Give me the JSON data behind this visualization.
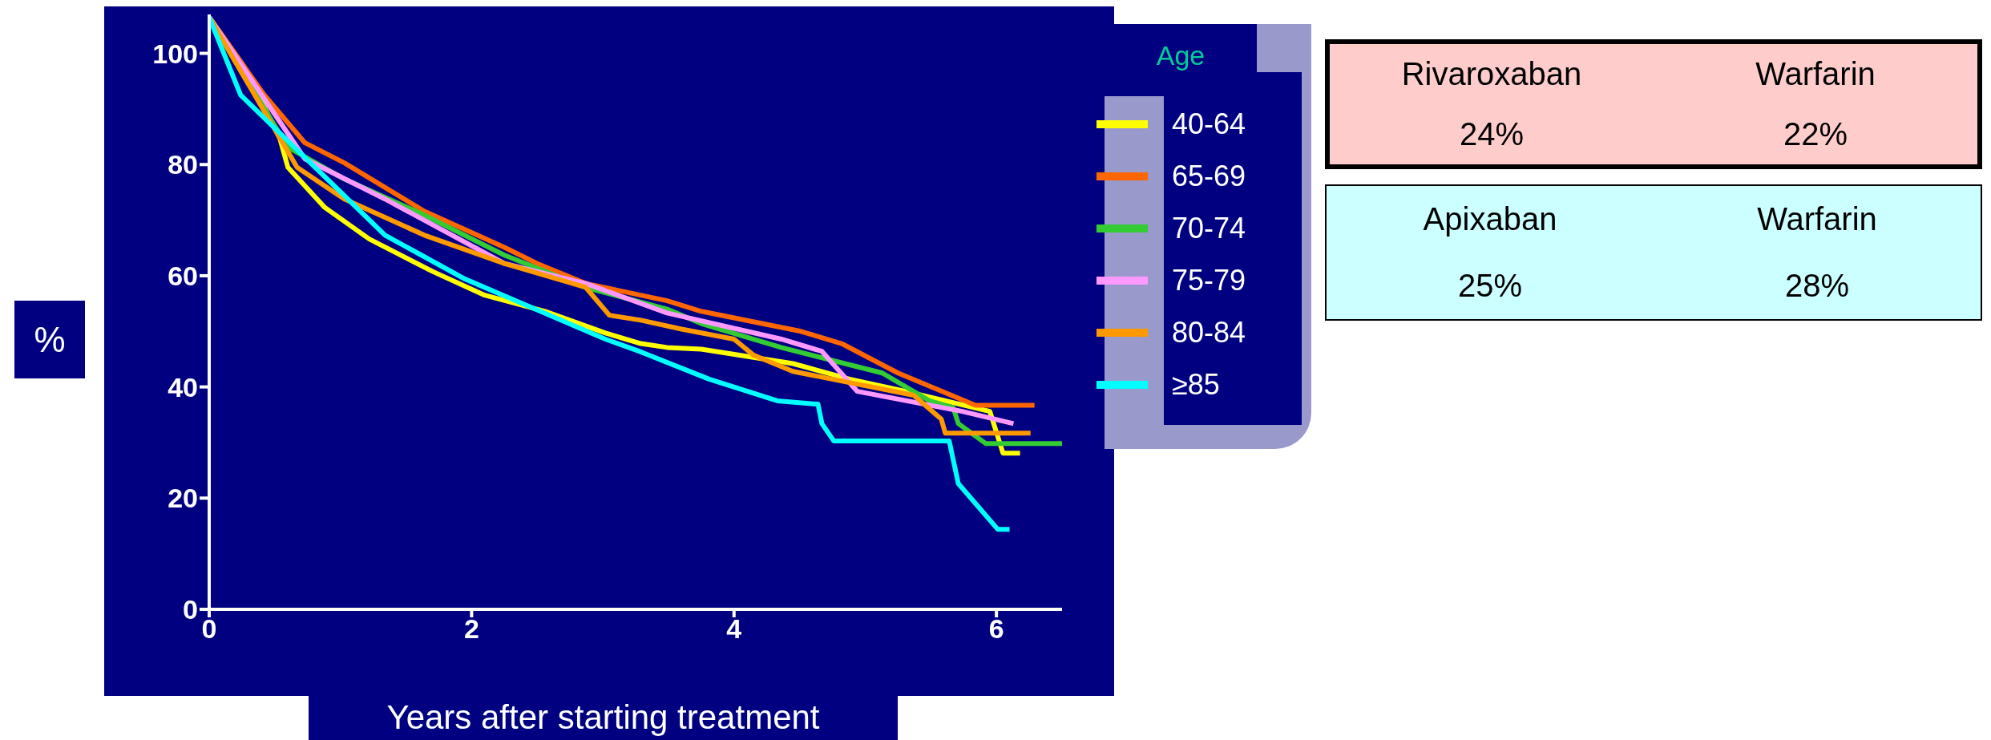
{
  "chart_data": [
    {
      "type": "line",
      "xlabel": "Years after starting treatment",
      "ylabel": "%",
      "legend_title": "Age",
      "legend": "right",
      "marker": "none",
      "line_style": "solid",
      "xlim": [
        0,
        6.5
      ],
      "xticks": [
        0,
        2,
        4,
        6
      ],
      "ylim": [
        0,
        107
      ],
      "yticks": [
        0,
        20,
        40,
        60,
        80,
        100
      ],
      "series": [
        {
          "name": "40-64",
          "color": "#ffff00",
          "x": [
            0,
            0.27,
            0.54,
            0.6,
            0.88,
            1.22,
            1.7,
            2.1,
            2.56,
            3.02,
            3.29,
            3.49,
            3.75,
            4.45,
            4.88,
            5.31,
            5.95,
            6.05,
            6.18
          ],
          "values": [
            106.5,
            97.5,
            84.6,
            79.5,
            72.3,
            66.6,
            60.8,
            56.5,
            53.6,
            49.7,
            47.8,
            47.1,
            46.8,
            44.2,
            41.4,
            39.2,
            35.6,
            28.1,
            28.1
          ]
        },
        {
          "name": "65-69",
          "color": "#ff6600",
          "x": [
            0,
            0.42,
            0.73,
            1.03,
            1.64,
            2.25,
            2.5,
            2.87,
            3.49,
            3.75,
            4.51,
            4.82,
            5.25,
            5.84,
            6.29
          ],
          "values": [
            106.5,
            92.5,
            83.9,
            80.3,
            71.6,
            65.1,
            62.2,
            58.6,
            55.5,
            53.6,
            50,
            47.8,
            42.5,
            36.7,
            36.7
          ]
        },
        {
          "name": "70-74",
          "color": "#33cc33",
          "x": [
            0,
            0.6,
            1.03,
            1.64,
            2.25,
            2.87,
            3.49,
            3.75,
            4.36,
            5.13,
            5.49,
            5.67,
            5.71,
            5.92,
            6.5
          ],
          "values": [
            106.5,
            83.1,
            77.4,
            70.9,
            63.7,
            57.9,
            54,
            51.4,
            47.1,
            42.5,
            37.5,
            36.3,
            33.4,
            29.8,
            29.8
          ]
        },
        {
          "name": "75-79",
          "color": "#ff99ff",
          "x": [
            0,
            0.73,
            1.34,
            2.25,
            2.87,
            3.49,
            4.36,
            4.67,
            4.94,
            5.74,
            6.13
          ],
          "values": [
            106.5,
            81,
            73.8,
            62.2,
            58.6,
            53.3,
            48.6,
            46.4,
            39.2,
            35.6,
            33.4
          ]
        },
        {
          "name": "80-84",
          "color": "#ff9900",
          "x": [
            0,
            0.67,
            1.03,
            1.64,
            2.25,
            2.87,
            3.05,
            3.29,
            3.6,
            4,
            4.15,
            4.45,
            5.37,
            5.58,
            5.61,
            6.26
          ],
          "values": [
            106.5,
            79.5,
            73.8,
            67.3,
            62.2,
            57.9,
            52.9,
            52,
            50.4,
            48.6,
            45.7,
            42.8,
            38.5,
            34.2,
            31.7,
            31.7
          ]
        },
        {
          "name": "≥85",
          "color": "#00ffff",
          "x": [
            0,
            0.24,
            1.34,
            1.95,
            3.02,
            3.29,
            3.81,
            4.33,
            4.64,
            4.67,
            4.76,
            5.64,
            5.71,
            6.01,
            6.1
          ],
          "values": [
            106.5,
            92.5,
            67.3,
            59.4,
            48.6,
            46.3,
            41.4,
            37.5,
            36.9,
            33.4,
            30.3,
            30.3,
            22.6,
            14.4,
            14.4
          ]
        }
      ]
    },
    {
      "type": "other",
      "annotations": [
        "Rivaroxaban",
        "Warfarin",
        "24%",
        "22%"
      ]
    },
    {
      "type": "other",
      "annotations": [
        "Apixaban",
        "Warfarin",
        "25%",
        "28%"
      ]
    }
  ]
}
